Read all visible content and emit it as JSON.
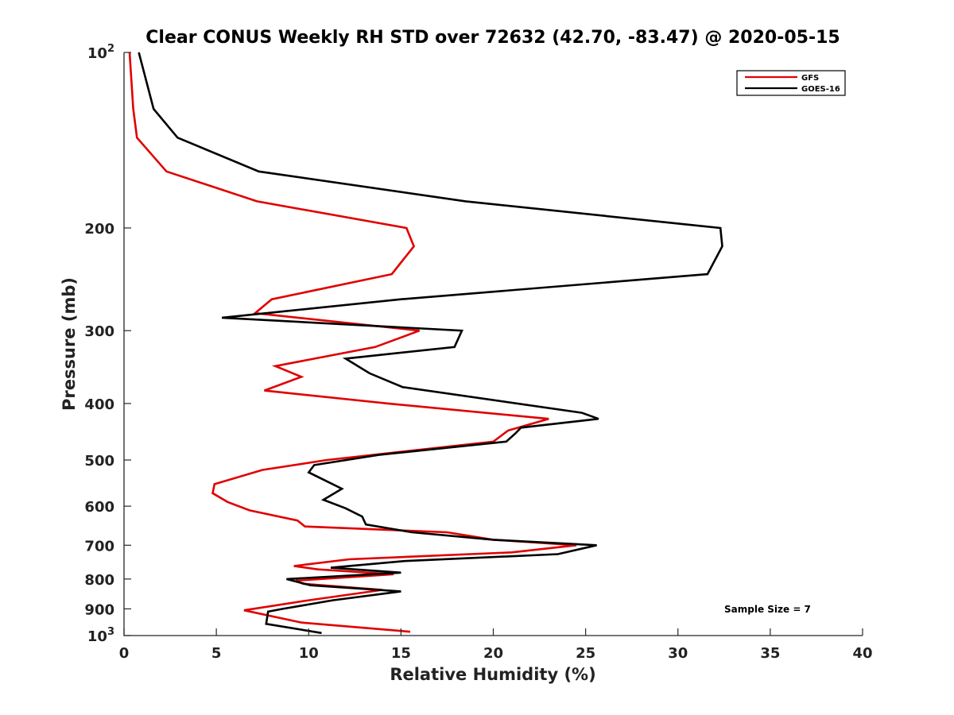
{
  "chart_data": {
    "type": "line",
    "title": "Clear CONUS Weekly RH STD over 72632 (42.70, -83.47) @ 2020-05-15",
    "xlabel": "Relative Humidity (%)",
    "ylabel": "Pressure (mb)",
    "xlim": [
      0,
      40
    ],
    "ylim": [
      100,
      1000
    ],
    "y_scale": "log",
    "y_reversed": true,
    "grid": false,
    "legend_position": "top-right",
    "annotation": "Sample Size = 7",
    "x_ticks": [
      "0",
      "5",
      "10",
      "15",
      "20",
      "25",
      "30",
      "35",
      "40"
    ],
    "y_ticks": [
      {
        "value": 100,
        "label": "10",
        "sup": "2"
      },
      {
        "value": 200,
        "label": "200",
        "sup": ""
      },
      {
        "value": 300,
        "label": "300",
        "sup": ""
      },
      {
        "value": 400,
        "label": "400",
        "sup": ""
      },
      {
        "value": 500,
        "label": "500",
        "sup": ""
      },
      {
        "value": 600,
        "label": "600",
        "sup": ""
      },
      {
        "value": 700,
        "label": "700",
        "sup": ""
      },
      {
        "value": 800,
        "label": "800",
        "sup": ""
      },
      {
        "value": 900,
        "label": "900",
        "sup": ""
      },
      {
        "value": 1000,
        "label": "10",
        "sup": "3"
      }
    ],
    "series": [
      {
        "name": "GFS",
        "color": "#e00000",
        "points": [
          [
            0.3,
            100
          ],
          [
            0.5,
            125
          ],
          [
            0.7,
            140
          ],
          [
            2.3,
            160
          ],
          [
            7.2,
            180
          ],
          [
            15.3,
            200
          ],
          [
            15.7,
            215
          ],
          [
            14.5,
            240
          ],
          [
            8.0,
            265
          ],
          [
            7.1,
            280
          ],
          [
            16.0,
            300
          ],
          [
            13.6,
            320
          ],
          [
            8.2,
            345
          ],
          [
            9.6,
            360
          ],
          [
            7.6,
            380
          ],
          [
            14.3,
            400
          ],
          [
            23.0,
            425
          ],
          [
            20.8,
            445
          ],
          [
            20.0,
            465
          ],
          [
            11.0,
            500
          ],
          [
            7.5,
            520
          ],
          [
            4.9,
            550
          ],
          [
            4.8,
            570
          ],
          [
            5.6,
            590
          ],
          [
            6.8,
            610
          ],
          [
            9.4,
            635
          ],
          [
            9.8,
            650
          ],
          [
            17.5,
            665
          ],
          [
            20.0,
            685
          ],
          [
            24.5,
            700
          ],
          [
            21.0,
            720
          ],
          [
            12.2,
            740
          ],
          [
            9.2,
            760
          ],
          [
            10.5,
            770
          ],
          [
            14.6,
            785
          ],
          [
            9.3,
            805
          ],
          [
            9.7,
            815
          ],
          [
            14.0,
            835
          ],
          [
            10.0,
            870
          ],
          [
            6.5,
            905
          ],
          [
            9.6,
            950
          ],
          [
            15.5,
            985
          ]
        ]
      },
      {
        "name": "GOES-16",
        "color": "#000000",
        "points": [
          [
            0.8,
            100
          ],
          [
            1.6,
            125
          ],
          [
            2.9,
            140
          ],
          [
            7.3,
            160
          ],
          [
            18.5,
            180
          ],
          [
            32.3,
            200
          ],
          [
            32.4,
            215
          ],
          [
            31.6,
            240
          ],
          [
            15.0,
            265
          ],
          [
            5.3,
            285
          ],
          [
            18.3,
            300
          ],
          [
            17.9,
            320
          ],
          [
            12.0,
            335
          ],
          [
            13.3,
            355
          ],
          [
            15.1,
            375
          ],
          [
            24.8,
            415
          ],
          [
            25.7,
            425
          ],
          [
            21.5,
            440
          ],
          [
            21.2,
            450
          ],
          [
            20.7,
            465
          ],
          [
            13.8,
            490
          ],
          [
            10.3,
            510
          ],
          [
            10.0,
            525
          ],
          [
            11.8,
            560
          ],
          [
            10.8,
            585
          ],
          [
            12.0,
            605
          ],
          [
            12.9,
            625
          ],
          [
            13.1,
            645
          ],
          [
            15.6,
            665
          ],
          [
            20.0,
            685
          ],
          [
            25.6,
            700
          ],
          [
            23.5,
            725
          ],
          [
            15.2,
            745
          ],
          [
            11.2,
            765
          ],
          [
            15.0,
            780
          ],
          [
            8.8,
            800
          ],
          [
            10.1,
            820
          ],
          [
            15.0,
            840
          ],
          [
            11.3,
            870
          ],
          [
            8.6,
            900
          ],
          [
            7.8,
            910
          ],
          [
            7.7,
            955
          ],
          [
            10.7,
            990
          ]
        ]
      }
    ]
  }
}
